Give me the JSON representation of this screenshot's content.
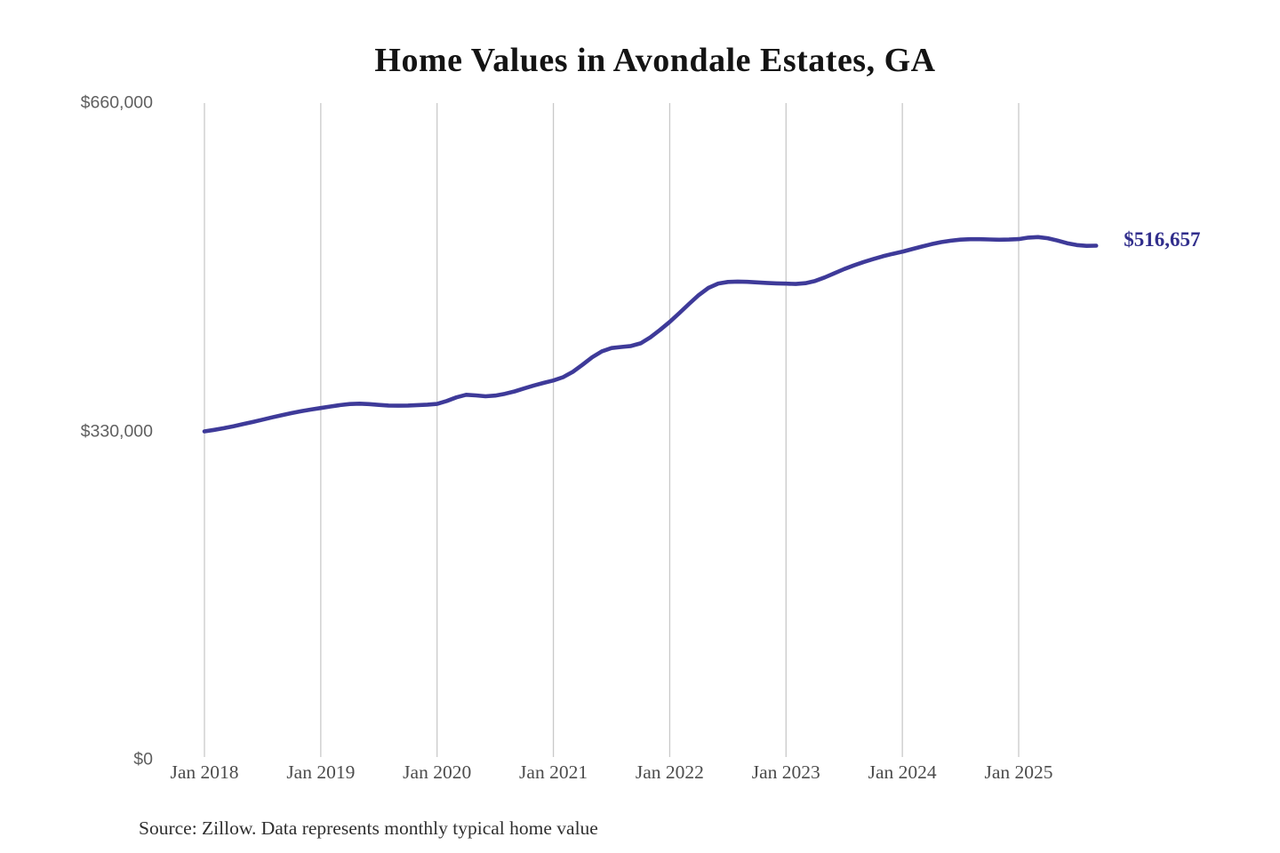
{
  "title": "Home Values in Avondale Estates, GA",
  "source_note": "Source: Zillow. Data represents monthly typical home value",
  "end_label": "$516,657",
  "colors": {
    "line": "#3e3a99",
    "end_label_text": "#312e8c",
    "grid": "#c9c9c9",
    "y_tick_text": "#5f5f5f",
    "x_tick_text": "#4c4c4c",
    "title_text": "#141414",
    "source_text": "#303030",
    "background": "#ffffff"
  },
  "chart_data": {
    "type": "line",
    "title": "Home Values in Avondale Estates, GA",
    "xlabel": "",
    "ylabel": "",
    "ylim": [
      0,
      660000
    ],
    "grid": "vertical-only",
    "legend": "none",
    "last_point_annotation": "$516,657",
    "y_ticks": [
      {
        "label": "$0",
        "value": 0
      },
      {
        "label": "$330,000",
        "value": 330000
      },
      {
        "label": "$660,000",
        "value": 660000
      }
    ],
    "x_tick_labels": [
      "Jan 2018",
      "Jan 2019",
      "Jan 2020",
      "Jan 2021",
      "Jan 2022",
      "Jan 2023",
      "Jan 2024",
      "Jan 2025"
    ],
    "series": [
      {
        "name": "Monthly typical home value",
        "start": "Jan 2018",
        "end": "Sep 2025",
        "interval": "monthly",
        "values": [
          330000,
          331500,
          333200,
          335200,
          337300,
          339500,
          341800,
          344100,
          346300,
          348400,
          350300,
          352000,
          353500,
          355000,
          356400,
          357500,
          357900,
          357400,
          356600,
          356000,
          355800,
          356000,
          356400,
          356900,
          357600,
          360500,
          364200,
          366800,
          366200,
          365300,
          366000,
          367800,
          370200,
          373200,
          376200,
          378800,
          381200,
          384500,
          389800,
          397000,
          404500,
          410500,
          413800,
          414800,
          415800,
          418500,
          424500,
          432000,
          440000,
          449000,
          458200,
          467000,
          474200,
          478600,
          480200,
          480600,
          480300,
          479800,
          479200,
          478800,
          478500,
          478200,
          479000,
          481200,
          484800,
          489000,
          493200,
          496800,
          500200,
          503200,
          506000,
          508400,
          510600,
          513200,
          515800,
          518200,
          520200,
          521700,
          522700,
          523200,
          523200,
          522900,
          522600,
          522800,
          523300,
          524800,
          525300,
          524200,
          521800,
          519200,
          517300,
          516500,
          516657
        ]
      }
    ]
  }
}
